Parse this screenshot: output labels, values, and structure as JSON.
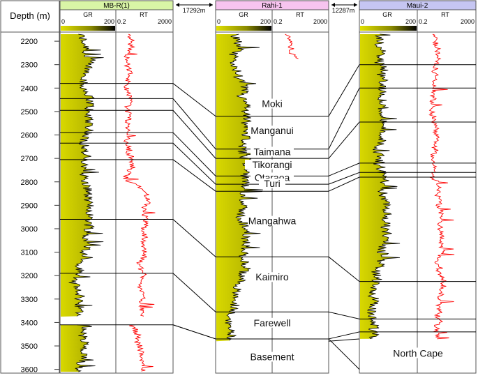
{
  "depth_axis": {
    "title": "Depth (m)",
    "ticks": [
      "2200",
      "2300",
      "2400",
      "2500",
      "2600",
      "2700",
      "2800",
      "2900",
      "3000",
      "3100",
      "3200",
      "3300",
      "3400",
      "3500",
      "3600"
    ]
  },
  "depth_range_m": [
    2170,
    3610
  ],
  "wells": [
    {
      "name": "MB-R(1)",
      "header_color": "#d9f5a6",
      "gr_label": "GR",
      "gr_min": "0",
      "gr_max": "200",
      "rt_label": "RT",
      "rt_min": "0.2",
      "rt_max": "2000",
      "data_top_m": 2170,
      "data_bottom_m": 3610,
      "gap_m": [
        3375,
        3410
      ],
      "rt_top_m": 2170
    },
    {
      "name": "Rahi-1",
      "header_color": "#f7c4ef",
      "gr_label": "GR",
      "gr_min": "0",
      "gr_max": "200",
      "rt_label": "RT",
      "rt_min": "0.2",
      "rt_max": "2000",
      "data_top_m": 2170,
      "data_bottom_m": 3480,
      "gap_m": null,
      "rt_top_m": 2170,
      "rt_bottom_m": 2275
    },
    {
      "name": "Maui-2",
      "header_color": "#c6c6f2",
      "gr_label": "GR",
      "gr_min": "0",
      "gr_max": "200",
      "rt_label": "RT",
      "rt_min": "0.2",
      "rt_max": "2000",
      "data_top_m": 2170,
      "data_bottom_m": 3470,
      "gap_m": null,
      "rt_top_m": 2170
    }
  ],
  "spacings": [
    "17292m",
    "12287m"
  ],
  "formations": [
    {
      "name": "Moki",
      "tops_m": [
        2380,
        2520,
        2300
      ]
    },
    {
      "name": "Manganui",
      "tops_m": [
        2445,
        2660,
        2400
      ]
    },
    {
      "name": "Taimana",
      "tops_m": [
        2495,
        2700,
        2545
      ]
    },
    {
      "name": "Tikorangi",
      "tops_m": [
        2590,
        2775,
        2720
      ]
    },
    {
      "name": "Otaraoa",
      "tops_m": [
        2635,
        2810,
        2760
      ]
    },
    {
      "name": "Turi",
      "tops_m": [
        2705,
        2840,
        2780
      ]
    },
    {
      "name": "Mangahwa",
      "tops_m": [
        2960,
        3120,
        3225
      ]
    },
    {
      "name": "Kaimiro",
      "tops_m": [
        3190,
        3355,
        3385
      ]
    },
    {
      "name": "Farewell",
      "tops_m": [
        3410,
        3470,
        3440
      ]
    },
    {
      "name": "Basement",
      "tops_m": [
        null,
        null,
        null
      ]
    },
    {
      "name": "North Cape",
      "tops_m": [
        null,
        null,
        null
      ]
    }
  ],
  "labels_in_rahi": [
    "Moki",
    "Manganui",
    "Taimana",
    "Tikorangi",
    "Otaraoa",
    "Turi",
    "Mangahwa",
    "Kaimiro",
    "Farewell",
    "Basement"
  ],
  "label_in_maui": "North Cape",
  "colors": {
    "gr_fill": "#c8c800",
    "gr_dark": "#6b6b00",
    "rt_curve": "#ff0000",
    "tops": "#000000",
    "header_border": "#555555"
  }
}
